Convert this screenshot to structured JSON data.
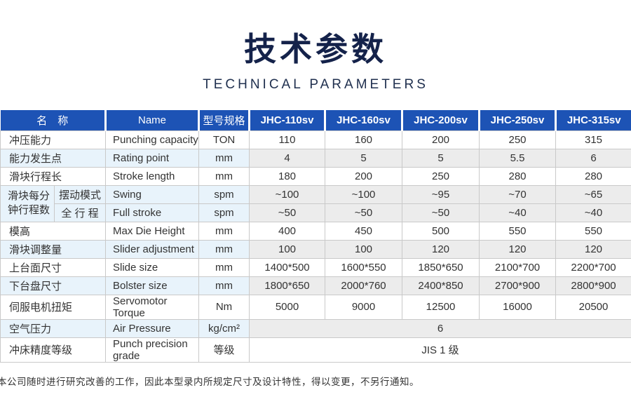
{
  "title": {
    "main": "技术参数",
    "subtitle": "TECHNICAL PARAMETERS"
  },
  "colors": {
    "header_blue": "#1d53b5",
    "row_tint_blue": "#e8f3fb",
    "row_tint_gray": "#ececec",
    "title_navy": "#14224a",
    "border_gray": "#c9c9c9"
  },
  "table": {
    "headers": {
      "name_cn": "名　称",
      "name_en": "Name",
      "spec": "型号规格",
      "models": [
        "JHC-110sv",
        "JHC-160sv",
        "JHC-200sv",
        "JHC-250sv",
        "JHC-315sv"
      ]
    },
    "rows": [
      {
        "cn": "冲压能力",
        "en": "Punching capacity",
        "unit": "TON",
        "values": [
          "110",
          "160",
          "200",
          "250",
          "315"
        ],
        "tint": false
      },
      {
        "cn": "能力发生点",
        "en": "Rating point",
        "unit": "mm",
        "values": [
          "4",
          "5",
          "5",
          "5.5",
          "6"
        ],
        "tint": true
      },
      {
        "cn": "滑块行程长",
        "en": "Stroke length",
        "unit": "mm",
        "values": [
          "180",
          "200",
          "250",
          "280",
          "280"
        ],
        "tint": false
      },
      {
        "group": "滑块每分钟行程数",
        "sub": true,
        "cn": "摆动模式",
        "en": "Swing",
        "unit": "spm",
        "values": [
          "~100",
          "~100",
          "~95",
          "~70",
          "~65"
        ],
        "tint": true
      },
      {
        "sub": true,
        "cn": "全 行 程",
        "en": "Full stroke",
        "unit": "spm",
        "values": [
          "~50",
          "~50",
          "~50",
          "~40",
          "~40"
        ],
        "tint": true
      },
      {
        "cn": "模高",
        "en": "Max Die Height",
        "unit": "mm",
        "values": [
          "400",
          "450",
          "500",
          "550",
          "550"
        ],
        "tint": false
      },
      {
        "cn": "滑块调整量",
        "en": "Slider adjustment",
        "unit": "mm",
        "values": [
          "100",
          "100",
          "120",
          "120",
          "120"
        ],
        "tint": true
      },
      {
        "cn": "上台面尺寸",
        "en": "Slide size",
        "unit": "mm",
        "values": [
          "1400*500",
          "1600*550",
          "1850*650",
          "2100*700",
          "2200*700"
        ],
        "tint": false
      },
      {
        "cn": "下台盘尺寸",
        "en": "Bolster size",
        "unit": "mm",
        "values": [
          "1800*650",
          "2000*760",
          "2400*850",
          "2700*900",
          "2800*900"
        ],
        "tint": true
      },
      {
        "cn": "伺服电机扭矩",
        "en": "Servomotor Torque",
        "unit": "Nm",
        "values": [
          "5000",
          "9000",
          "12500",
          "16000",
          "20500"
        ],
        "tint": false
      },
      {
        "cn": "空气压力",
        "en": "Air Pressure",
        "unit": "kg/cm²",
        "span_value": "6",
        "tint": true
      },
      {
        "cn": "冲床精度等级",
        "en": "Punch precision grade",
        "unit": "等级",
        "span_value": "JIS 1 级",
        "tint": false
      }
    ]
  },
  "footer": {
    "note": "本公司随时进行研究改善的工作，因此本型录内所规定尺寸及设计特性，得以变更，不另行通知。"
  }
}
